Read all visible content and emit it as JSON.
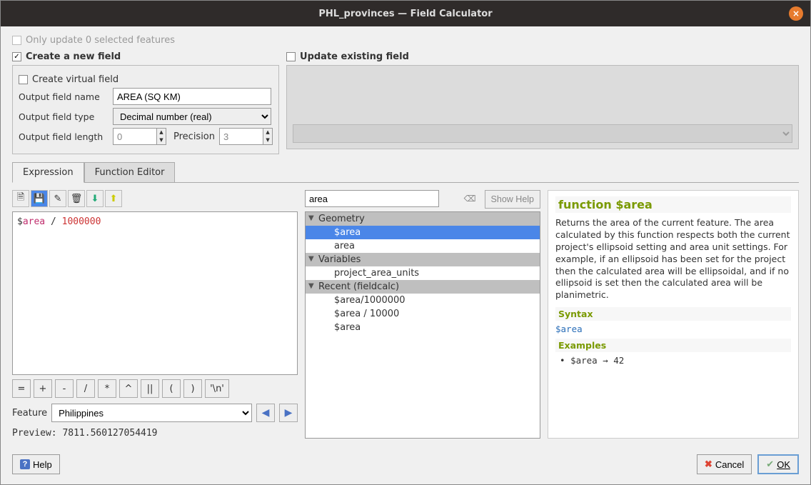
{
  "window": {
    "title": "PHL_provinces — Field Calculator"
  },
  "top": {
    "only_update_label": "Only update 0 selected features",
    "create_new_field_label": "Create a new field",
    "update_existing_label": "Update existing field"
  },
  "newfield": {
    "virtual_label": "Create virtual field",
    "name_label": "Output field name",
    "name_value": "AREA (SQ KM)",
    "type_label": "Output field type",
    "type_value": "Decimal number (real)",
    "length_label": "Output field length",
    "length_value": "0",
    "precision_label": "Precision",
    "precision_value": "3"
  },
  "tabs": {
    "expression": "Expression",
    "function_editor": "Function Editor"
  },
  "expression": {
    "code_html": "<span class='tok-op'>$</span><span class='tok-var'>area</span> <span class='tok-op'>/</span> <span class='tok-num'>1000000</span>"
  },
  "operators": {
    "eq": "=",
    "plus": "+",
    "minus": "-",
    "div": "/",
    "mul": "*",
    "pow": "^",
    "concat": "||",
    "lparen": "(",
    "rparen": ")",
    "nl": "'\\n'"
  },
  "feature": {
    "label": "Feature",
    "value": "Philippines",
    "prev": "◀",
    "next": "▶"
  },
  "preview": {
    "label": "Preview:",
    "value": "7811.560127054419"
  },
  "search": {
    "value": "area",
    "show_help": "Show Help"
  },
  "tree": {
    "g1": "Geometry",
    "g1_i1": "$area",
    "g1_i2": "area",
    "g2": "Variables",
    "g2_i1": "project_area_units",
    "g3": "Recent (fieldcalc)",
    "g3_i1": "$area/1000000",
    "g3_i2": "$area / 10000",
    "g3_i3": "$area"
  },
  "help": {
    "title": "function $area",
    "desc": "Returns the area of the current feature. The area calculated by this function respects both the current project's ellipsoid setting and area unit settings. For example, if an ellipsoid has been set for the project then the calculated area will be ellipsoidal, and if no ellipsoid is set then the calculated area will be planimetric.",
    "syntax_hdr": "Syntax",
    "syntax_code": "$area",
    "examples_hdr": "Examples",
    "example1": "$area → 42"
  },
  "footer": {
    "help": "Help",
    "cancel": "Cancel",
    "ok": "OK"
  }
}
